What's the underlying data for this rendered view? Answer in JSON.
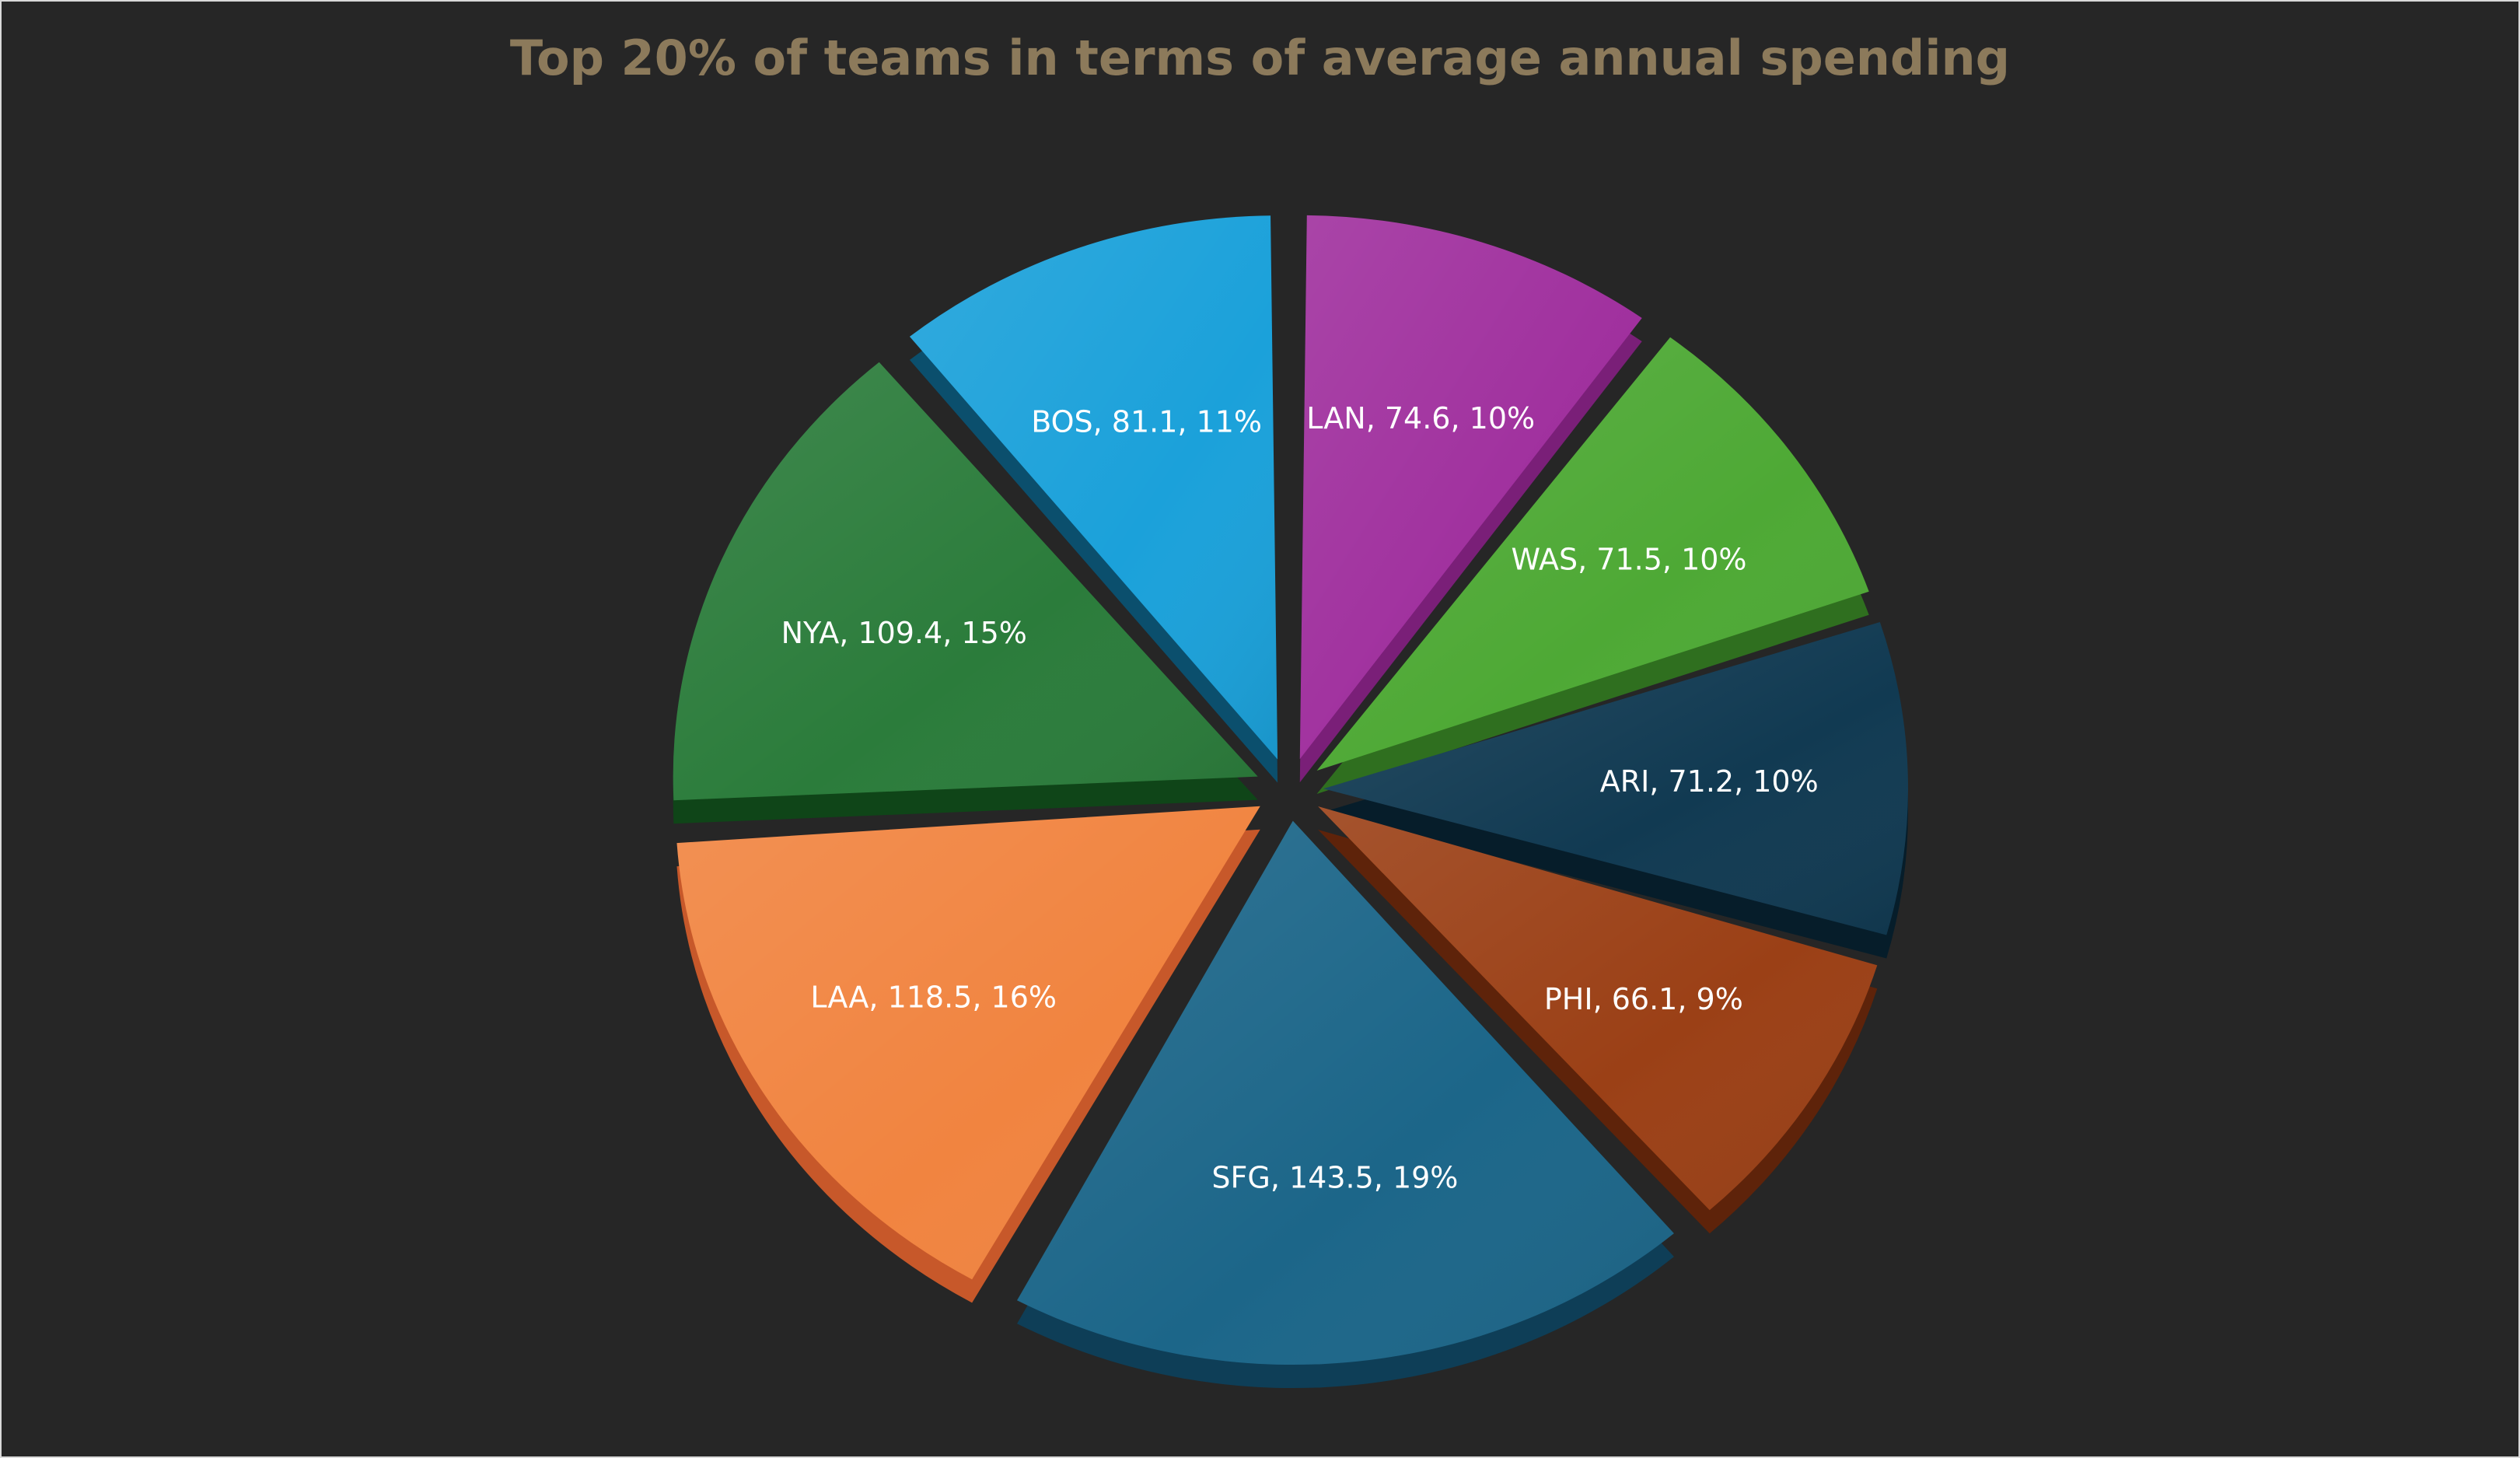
{
  "chart_data": {
    "type": "pie",
    "title": "Top 20% of teams in terms of average annual spending",
    "start_category": "LAN",
    "direction": "clockwise",
    "exploded": true,
    "three_d": true,
    "categories": [
      "LAN",
      "WAS",
      "ARI",
      "PHI",
      "SFG",
      "LAA",
      "NYA",
      "BOS"
    ],
    "values": [
      74.6,
      71.5,
      71.2,
      66.1,
      143.5,
      118.5,
      109.4,
      81.1
    ],
    "percent_labels": [
      "10%",
      "10%",
      "10%",
      "9%",
      "19%",
      "16%",
      "15%",
      "11%"
    ],
    "data_labels": [
      "LAN, 74.6, 10%",
      "WAS, 71.5, 10%",
      "ARI, 71.2, 10%",
      "PHI, 66.1, 9%",
      "SFG, 143.5, 19%",
      "LAA, 118.5, 16%",
      "NYA, 109.4, 15%",
      "BOS, 81.1, 11%"
    ],
    "colors": [
      "#a0309e",
      "#4ea935",
      "#113a52",
      "#9b4016",
      "#1c6689",
      "#f18440",
      "#2b7c3b",
      "#1ba1da"
    ],
    "side_colors": [
      "#7a1f78",
      "#2f6f1f",
      "#061d2a",
      "#5e230a",
      "#0e3e57",
      "#c7582a",
      "#0f4518",
      "#0b4f6d"
    ],
    "label_color": "#ffffff",
    "background": "#262626",
    "title_color": "#8c7a5b"
  }
}
